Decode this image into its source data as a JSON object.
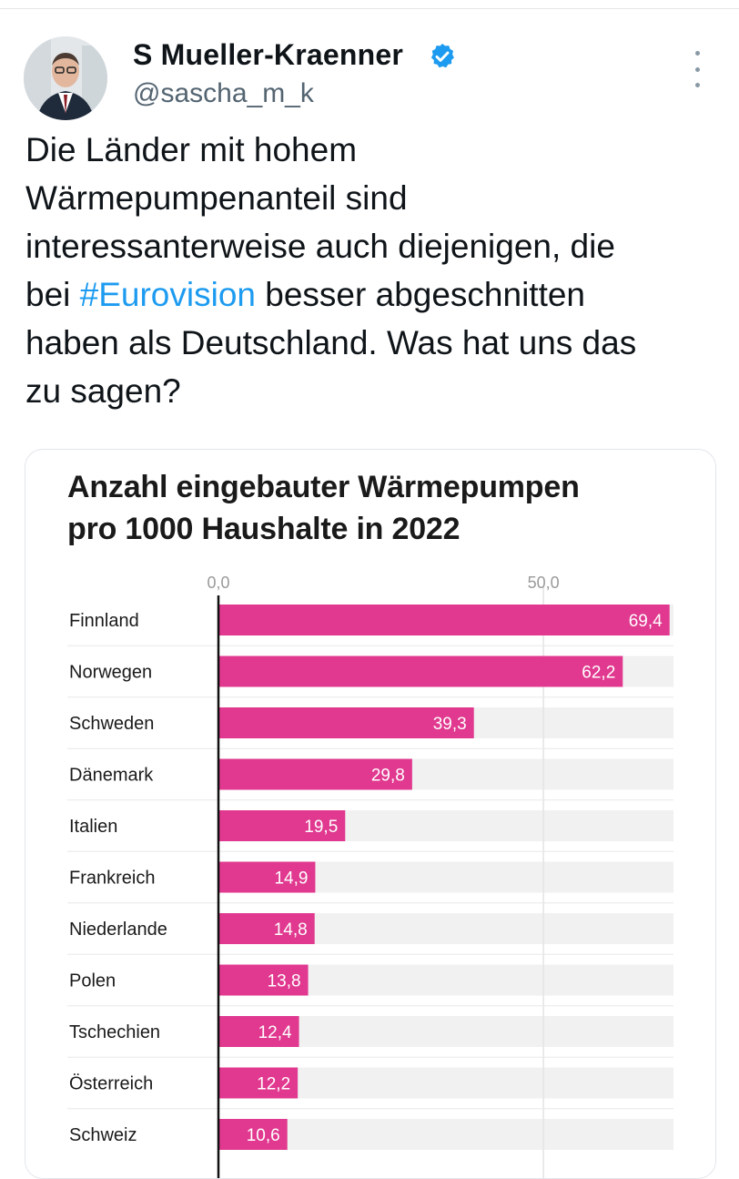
{
  "tweet": {
    "author_name": "S Mueller-Kraenner",
    "author_handle": "@sascha_m_k",
    "text_lines": [
      "Die Länder mit hohem",
      "Wärmepumpenanteil sind",
      "interessanterweise auch diejenigen, die",
      "bei ",
      "#Eurovision",
      " besser abgeschnitten",
      "haben als Deutschland. Was hat uns das",
      "zu sagen?"
    ]
  },
  "colors": {
    "bar": "#e0398f",
    "track": "#f1f1f1",
    "hashtag": "#1d9bf0",
    "verified": "#1d9bf0"
  },
  "chart_data": {
    "type": "bar",
    "orientation": "horizontal",
    "title_lines": [
      "Anzahl eingebauter Wärmepumpen",
      "pro 1000 Haushalte in 2022"
    ],
    "xlim": [
      0,
      70
    ],
    "x_ticks": [
      0,
      50
    ],
    "x_tick_labels": [
      "0,0",
      "50,0"
    ],
    "categories": [
      "Finnland",
      "Norwegen",
      "Schweden",
      "Dänemark",
      "Italien",
      "Frankreich",
      "Niederlande",
      "Polen",
      "Tschechien",
      "Österreich",
      "Schweiz"
    ],
    "values": [
      69.4,
      62.2,
      39.3,
      29.8,
      19.5,
      14.9,
      14.8,
      13.8,
      12.4,
      12.2,
      10.6
    ],
    "value_labels": [
      "69,4",
      "62,2",
      "39,3",
      "29,8",
      "19,5",
      "14,9",
      "14,8",
      "13,8",
      "12,4",
      "12,2",
      "10,6"
    ]
  }
}
